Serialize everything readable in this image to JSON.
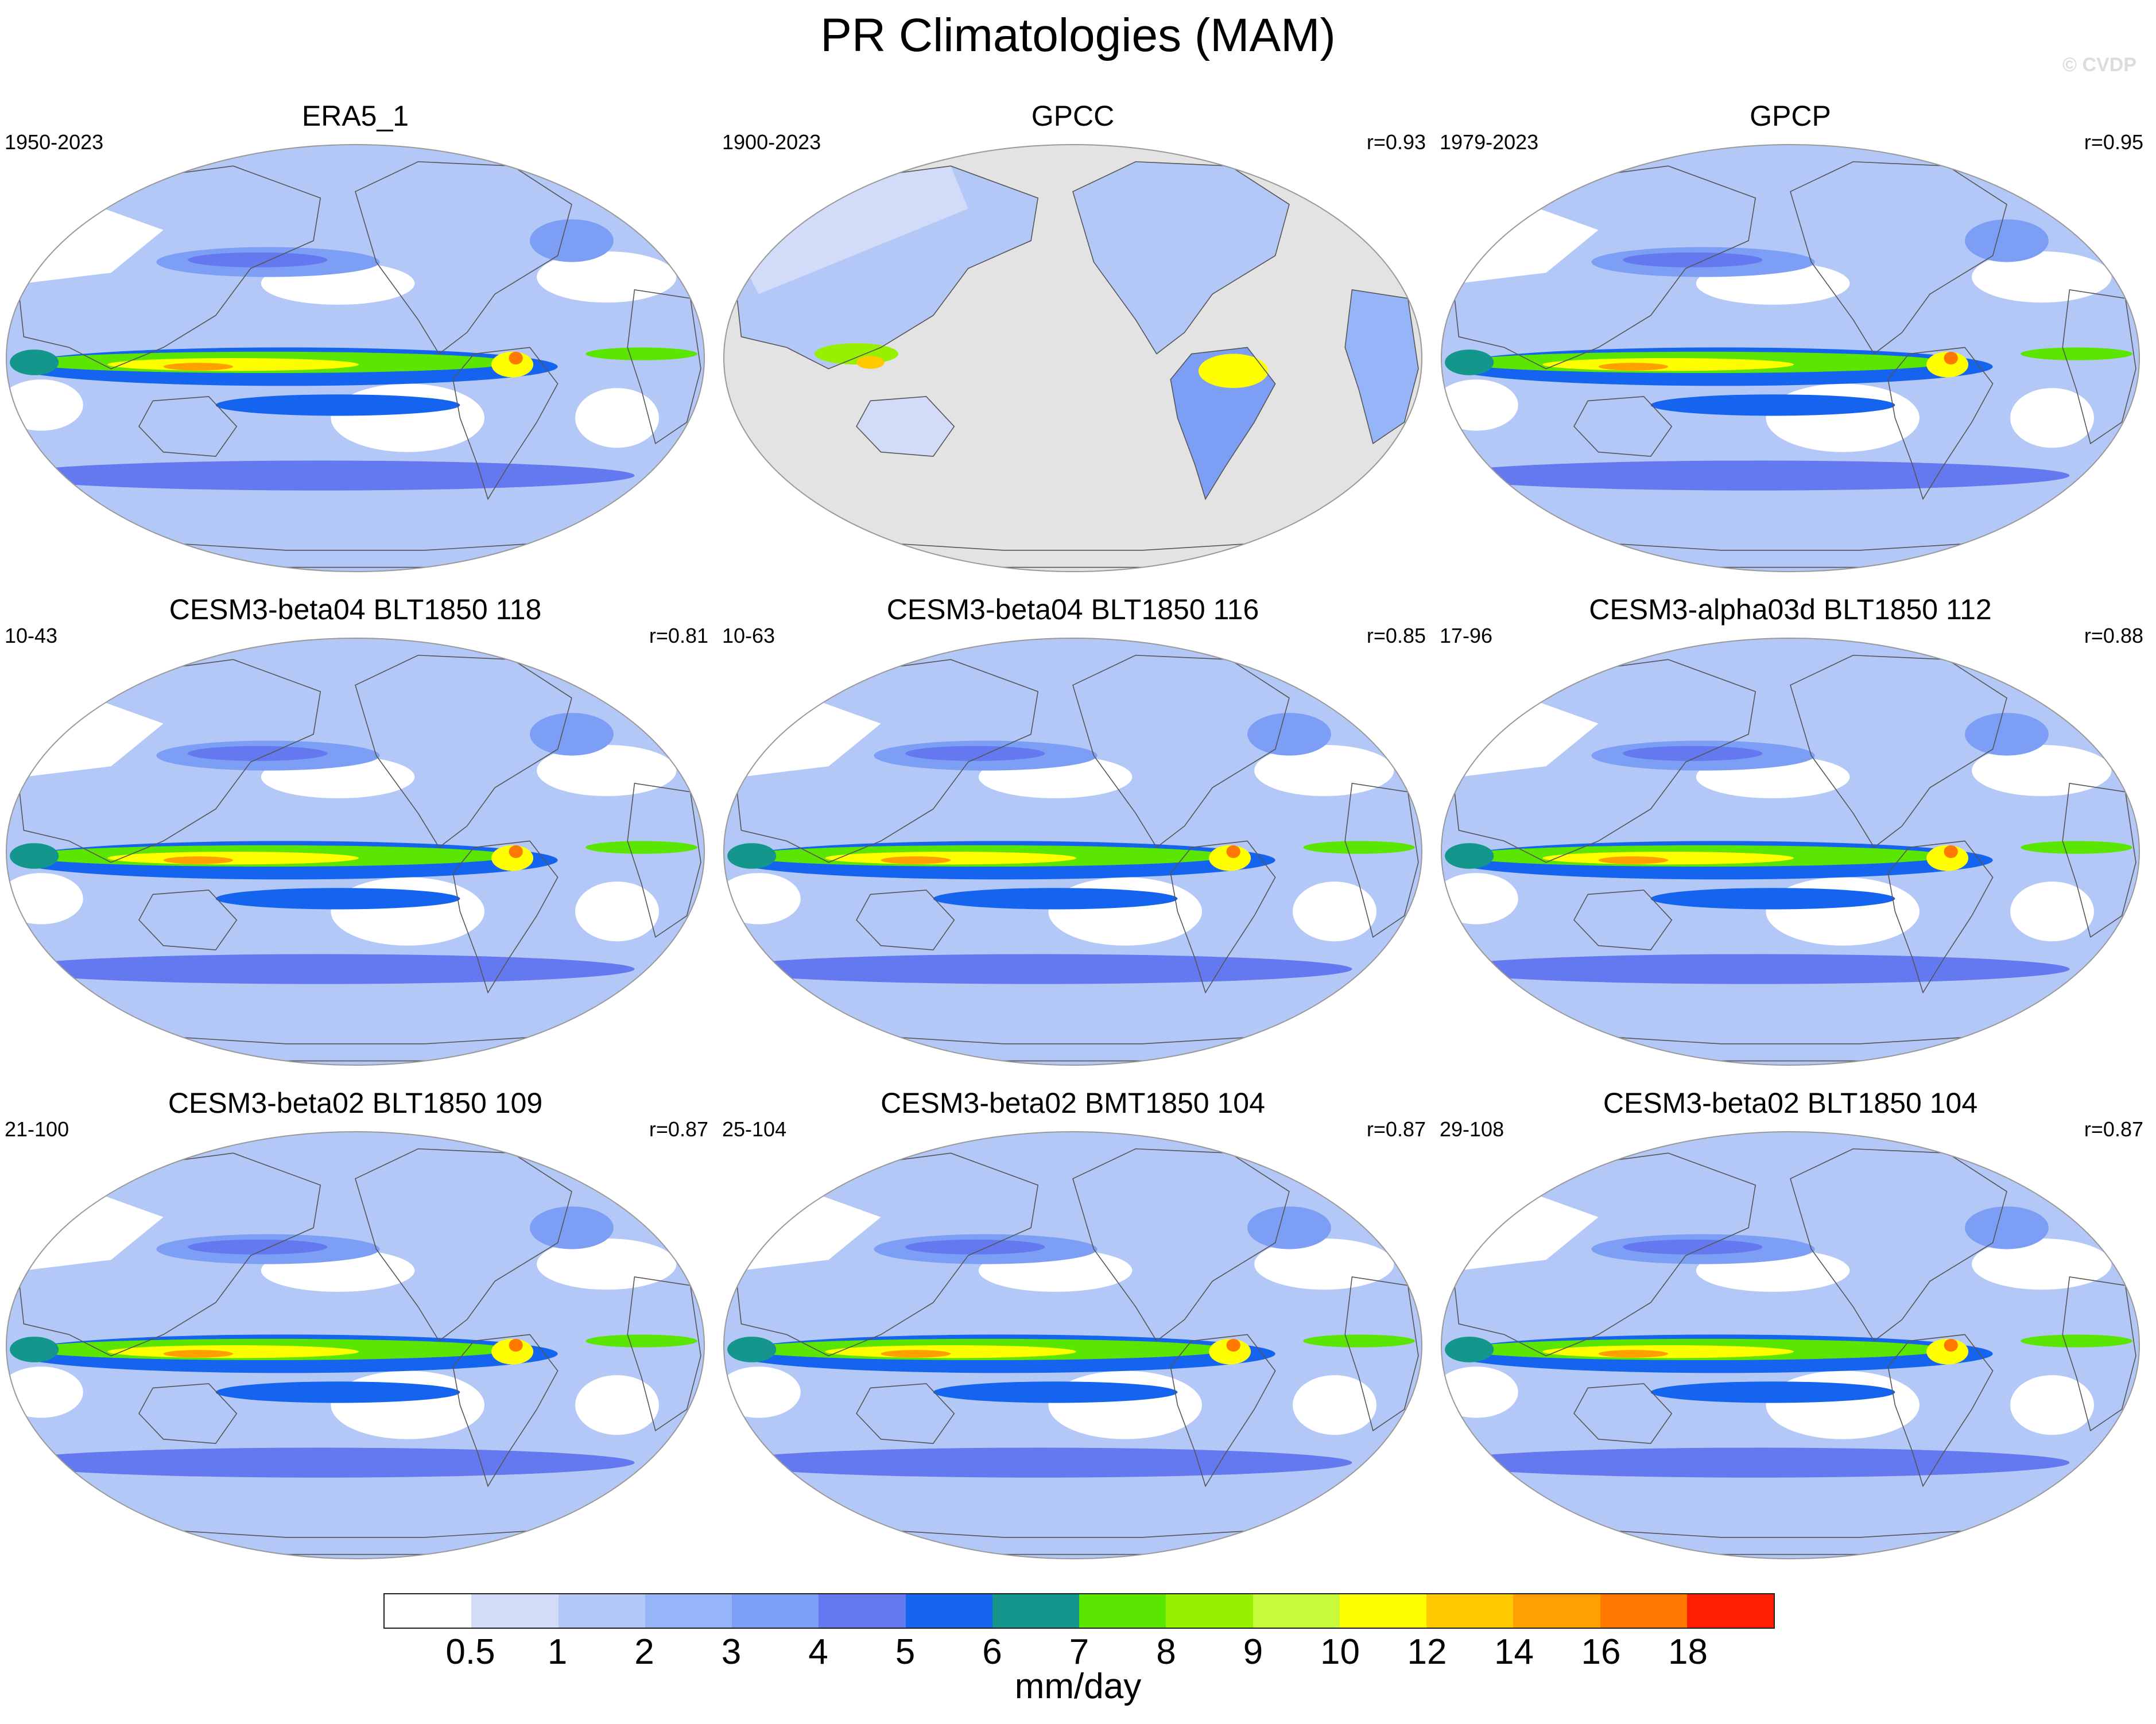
{
  "figure": {
    "title": "PR Climatologies (MAM)",
    "watermark": "© CVDP"
  },
  "panels": [
    {
      "title": "ERA5_1",
      "period": "1950-2023",
      "corr": ""
    },
    {
      "title": "GPCC",
      "period": "1900-2023",
      "corr": "r=0.93"
    },
    {
      "title": "GPCP",
      "period": "1979-2023",
      "corr": "r=0.95"
    },
    {
      "title": "CESM3-beta04 BLT1850 118",
      "period": "10-43",
      "corr": "r=0.81"
    },
    {
      "title": "CESM3-beta04 BLT1850 116",
      "period": "10-63",
      "corr": "r=0.85"
    },
    {
      "title": "CESM3-alpha03d BLT1850 112",
      "period": "17-96",
      "corr": "r=0.88"
    },
    {
      "title": "CESM3-beta02 BLT1850 109",
      "period": "21-100",
      "corr": "r=0.87"
    },
    {
      "title": "CESM3-beta02 BMT1850 104",
      "period": "25-104",
      "corr": "r=0.87"
    },
    {
      "title": "CESM3-beta02 BLT1850 104",
      "period": "29-108",
      "corr": "r=0.87"
    }
  ],
  "colorbar": {
    "units": "mm/day",
    "ticks": [
      "0.5",
      "1",
      "2",
      "3",
      "4",
      "5",
      "6",
      "7",
      "8",
      "9",
      "10",
      "12",
      "14",
      "16",
      "18"
    ],
    "colors": [
      "#ffffff",
      "#d2dcf8",
      "#b4c8f8",
      "#96b4f8",
      "#7d9ef5",
      "#6478f0",
      "#1464f0",
      "#14968c",
      "#5ae600",
      "#96f000",
      "#c8fa3c",
      "#ffff00",
      "#ffc800",
      "#ffa000",
      "#ff7800",
      "#ff1e00"
    ]
  },
  "maps": {
    "land_mask_color": "#e3e3e3",
    "coast_color": "#555555",
    "projection": "Robinson, centered on the Pacific"
  }
}
